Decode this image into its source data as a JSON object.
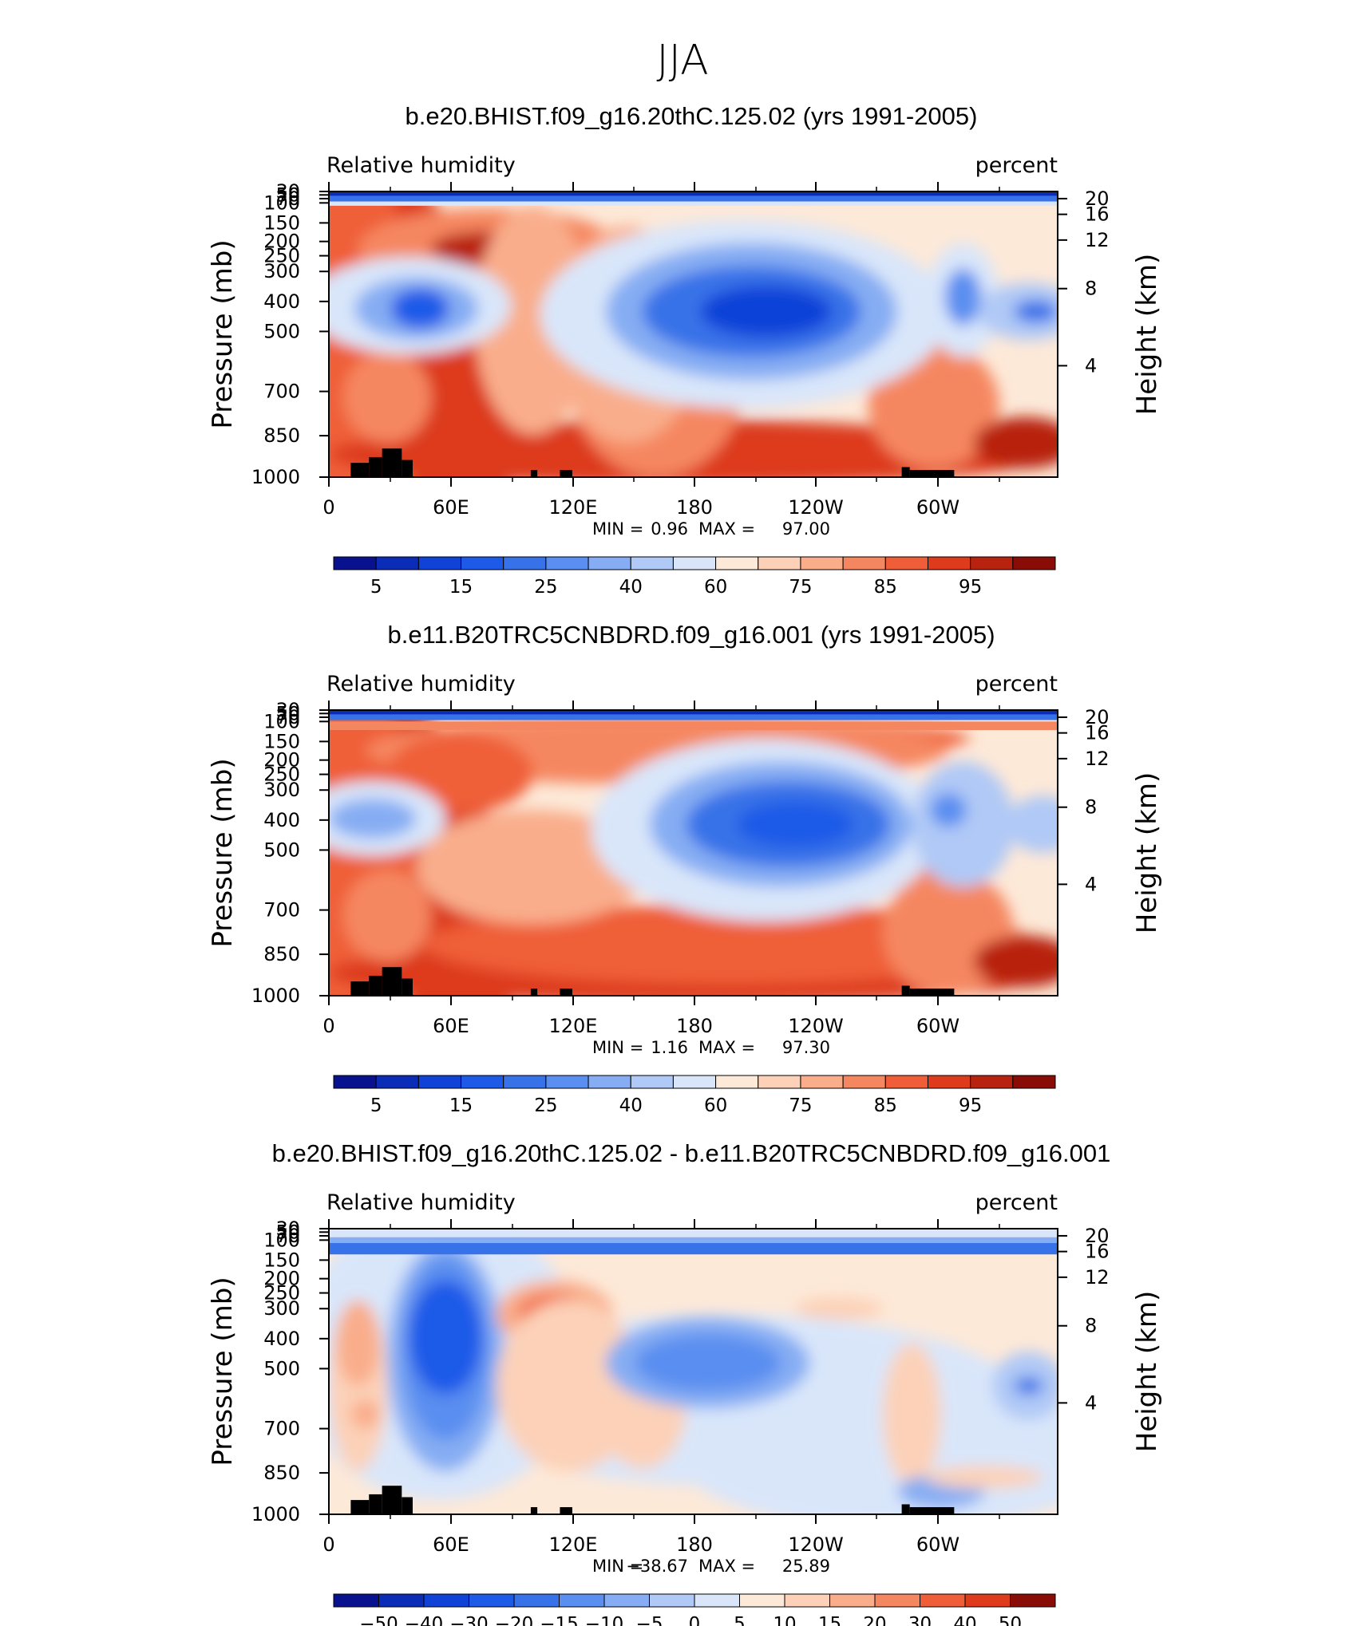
{
  "figure_title": "JJA",
  "chart_data": [
    {
      "type": "heatmap",
      "title": "b.e20.BHIST.f09_g16.20thC.125.02 (yrs 1991-2005)",
      "left_string": "Relative humidity",
      "right_string": "percent",
      "ylabel": "Pressure (mb)",
      "y2label": "Height (km)",
      "x_ticks": [
        "0",
        "60E",
        "120E",
        "180",
        "120W",
        "60W"
      ],
      "y_ticks": [
        "30",
        "50",
        "70",
        "100",
        "150",
        "200",
        "250",
        "300",
        "400",
        "500",
        "700",
        "850",
        "1000"
      ],
      "height_ticks": [
        "20",
        "16",
        "12",
        "8",
        "4"
      ],
      "stats": {
        "min_label": "MIN =",
        "min": "0.96",
        "max_label": "MAX =",
        "max": "97.00"
      },
      "colorbar_labels": [
        "5",
        "15",
        "25",
        "40",
        "60",
        "75",
        "85",
        "95"
      ],
      "colors": [
        "#08128f",
        "#0b2cb7",
        "#1042d8",
        "#1e5ae8",
        "#3872e8",
        "#5a8ef0",
        "#86adf3",
        "#b0c9f6",
        "#d9e6fa",
        "#fde9d8",
        "#fcd1b8",
        "#f9ad8b",
        "#f58760",
        "#ef5e38",
        "#dd3b1b",
        "#b8230f",
        "#8a0c06"
      ]
    },
    {
      "type": "heatmap",
      "title": "b.e11.B20TRC5CNBDRD.f09_g16.001 (yrs 1991-2005)",
      "left_string": "Relative humidity",
      "right_string": "percent",
      "ylabel": "Pressure (mb)",
      "y2label": "Height (km)",
      "x_ticks": [
        "0",
        "60E",
        "120E",
        "180",
        "120W",
        "60W"
      ],
      "y_ticks": [
        "30",
        "50",
        "70",
        "100",
        "150",
        "200",
        "250",
        "300",
        "400",
        "500",
        "700",
        "850",
        "1000"
      ],
      "height_ticks": [
        "20",
        "16",
        "12",
        "8",
        "4"
      ],
      "stats": {
        "min_label": "MIN =",
        "min": "1.16",
        "max_label": "MAX =",
        "max": "97.30"
      },
      "colorbar_labels": [
        "5",
        "15",
        "25",
        "40",
        "60",
        "75",
        "85",
        "95"
      ],
      "colors": [
        "#08128f",
        "#0b2cb7",
        "#1042d8",
        "#1e5ae8",
        "#3872e8",
        "#5a8ef0",
        "#86adf3",
        "#b0c9f6",
        "#d9e6fa",
        "#fde9d8",
        "#fcd1b8",
        "#f9ad8b",
        "#f58760",
        "#ef5e38",
        "#dd3b1b",
        "#b8230f",
        "#8a0c06"
      ]
    },
    {
      "type": "heatmap",
      "title": "b.e20.BHIST.f09_g16.20thC.125.02 - b.e11.B20TRC5CNBDRD.f09_g16.001",
      "left_string": "Relative humidity",
      "right_string": "percent",
      "ylabel": "Pressure (mb)",
      "y2label": "Height (km)",
      "x_ticks": [
        "0",
        "60E",
        "120E",
        "180",
        "120W",
        "60W"
      ],
      "y_ticks": [
        "30",
        "50",
        "70",
        "100",
        "150",
        "200",
        "250",
        "300",
        "400",
        "500",
        "700",
        "850",
        "1000"
      ],
      "height_ticks": [
        "20",
        "16",
        "12",
        "8",
        "4"
      ],
      "stats": {
        "min_label": "MIN =",
        "min": "−38.67",
        "max_label": "MAX =",
        "max": "25.89"
      },
      "colorbar_labels": [
        "−50",
        "−40",
        "−30",
        "−20",
        "−15",
        "−10",
        "−5",
        "0",
        "5",
        "10",
        "15",
        "20",
        "30",
        "40",
        "50"
      ],
      "colors": [
        "#08128f",
        "#0b2cb7",
        "#1042d8",
        "#1e5ae8",
        "#3872e8",
        "#5a8ef0",
        "#86adf3",
        "#b0c9f6",
        "#d9e6fa",
        "#fde9d8",
        "#fcd1b8",
        "#f9ad8b",
        "#f58760",
        "#ef5e38",
        "#dd3b1b",
        "#8a0c06"
      ]
    }
  ]
}
